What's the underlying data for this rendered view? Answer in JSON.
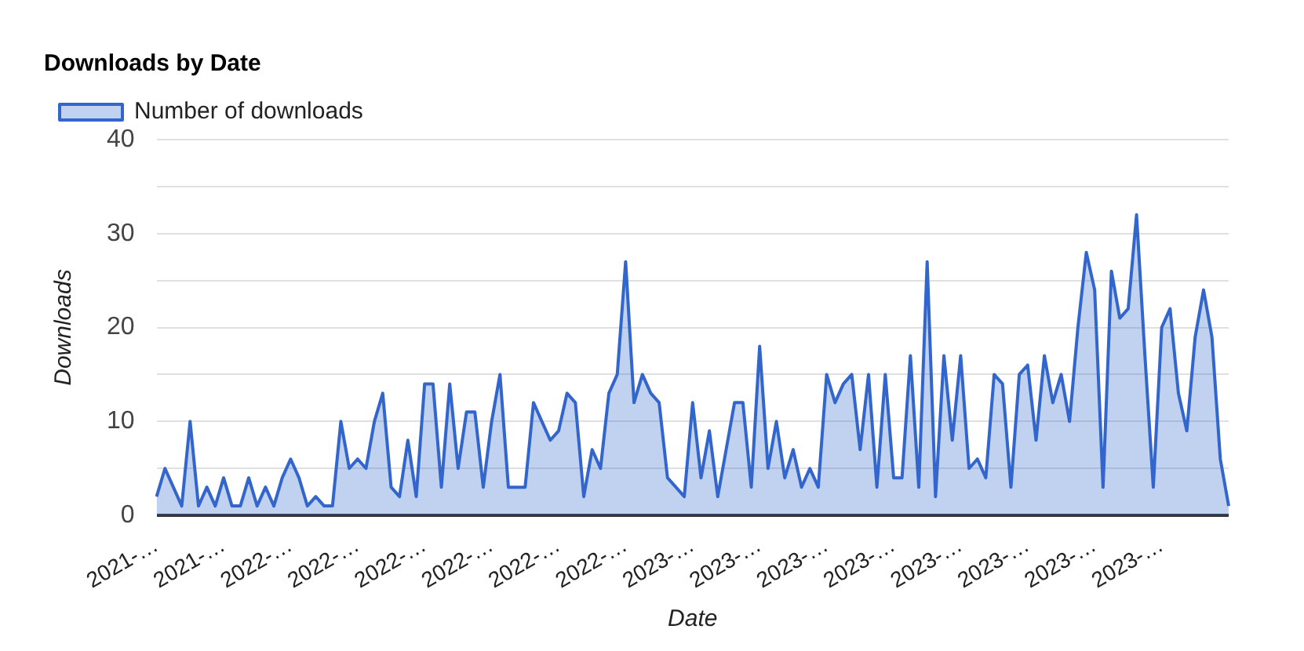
{
  "chart_data": {
    "type": "area",
    "title": "Downloads by Date",
    "xlabel": "Date",
    "ylabel": "Downloads",
    "categories": [
      "2021-…",
      null,
      null,
      null,
      null,
      null,
      null,
      null,
      "2021-…",
      null,
      null,
      null,
      null,
      null,
      null,
      null,
      "2022-…",
      null,
      null,
      null,
      null,
      null,
      null,
      null,
      "2022-…",
      null,
      null,
      null,
      null,
      null,
      null,
      null,
      "2022-…",
      null,
      null,
      null,
      null,
      null,
      null,
      null,
      "2022-…",
      null,
      null,
      null,
      null,
      null,
      null,
      null,
      "2022-…",
      null,
      null,
      null,
      null,
      null,
      null,
      null,
      "2022-…",
      null,
      null,
      null,
      null,
      null,
      null,
      null,
      "2023-…",
      null,
      null,
      null,
      null,
      null,
      null,
      null,
      "2023-…",
      null,
      null,
      null,
      null,
      null,
      null,
      null,
      "2023-…",
      null,
      null,
      null,
      null,
      null,
      null,
      null,
      "2023-…",
      null,
      null,
      null,
      null,
      null,
      null,
      null,
      "2023-…",
      null,
      null,
      null,
      null,
      null,
      null,
      null,
      "2023-…",
      null,
      null,
      null,
      null,
      null,
      null,
      null,
      "2023-…",
      null,
      null,
      null,
      null,
      null,
      null,
      null,
      "2023-…",
      null,
      null,
      null,
      null,
      null,
      null,
      null,
      null
    ],
    "series": [
      {
        "name": "Number of downloads",
        "color": "#3366cc",
        "values": [
          2,
          5,
          3,
          1,
          10,
          1,
          3,
          1,
          4,
          1,
          1,
          4,
          1,
          3,
          1,
          4,
          6,
          4,
          1,
          2,
          1,
          1,
          10,
          5,
          6,
          5,
          10,
          13,
          3,
          2,
          8,
          2,
          14,
          14,
          3,
          14,
          5,
          11,
          11,
          3,
          10,
          15,
          3,
          3,
          3,
          12,
          10,
          8,
          9,
          13,
          12,
          2,
          7,
          5,
          13,
          15,
          27,
          12,
          15,
          13,
          12,
          4,
          3,
          2,
          12,
          4,
          9,
          2,
          7,
          12,
          12,
          3,
          18,
          5,
          10,
          4,
          7,
          3,
          5,
          3,
          15,
          12,
          14,
          15,
          7,
          15,
          3,
          15,
          4,
          4,
          17,
          3,
          27,
          2,
          17,
          8,
          17,
          5,
          6,
          4,
          15,
          14,
          3,
          15,
          16,
          8,
          17,
          12,
          15,
          10,
          20,
          28,
          24,
          3,
          26,
          21,
          22,
          32,
          17,
          3,
          20,
          22,
          13,
          9,
          19,
          24,
          19,
          6,
          1
        ]
      }
    ],
    "ylim": [
      0,
      40
    ],
    "yticks": [
      0,
      {
        "value": 5,
        "label": null
      },
      10,
      {
        "value": 15,
        "label": null
      },
      20,
      {
        "value": 25,
        "label": null
      },
      30,
      {
        "value": 35,
        "label": null
      },
      40
    ],
    "grid": "y",
    "legend": "top left"
  }
}
